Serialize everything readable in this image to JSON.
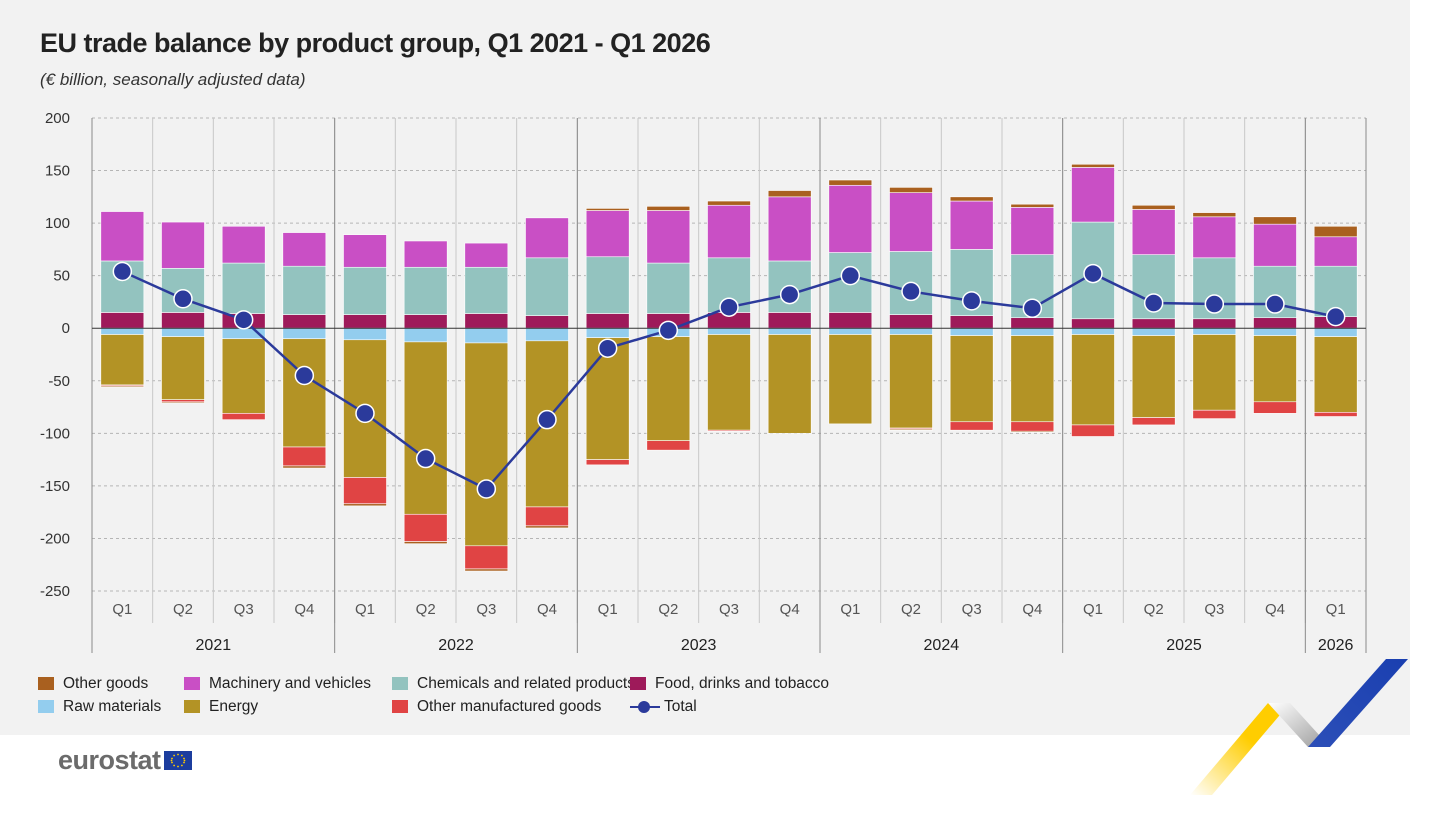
{
  "header": {
    "title": "EU trade balance by product group, Q1 2021 - Q1 2026",
    "subtitle": "(€ billion, seasonally adjusted data)"
  },
  "brand": {
    "name": "eurostat"
  },
  "colors": {
    "other_goods": "#a9601f",
    "machinery": "#c94fc5",
    "chemicals": "#93c3bf",
    "food": "#9e1a5a",
    "raw": "#93cdee",
    "energy": "#b39325",
    "other_manufactured": "#e04444",
    "total": "#2b3a9b"
  },
  "legend": {
    "items": [
      {
        "key": "other_goods",
        "label": "Other goods"
      },
      {
        "key": "machinery",
        "label": "Machinery and vehicles"
      },
      {
        "key": "chemicals",
        "label": "Chemicals and related products"
      },
      {
        "key": "food",
        "label": "Food, drinks and tobacco"
      },
      {
        "key": "raw",
        "label": "Raw materials"
      },
      {
        "key": "energy",
        "label": "Energy"
      },
      {
        "key": "other_manufactured",
        "label": "Other manufactured goods"
      },
      {
        "key": "total",
        "label": "Total"
      }
    ]
  },
  "chart_data": {
    "type": "bar",
    "stacked": true,
    "ylim": [
      -250,
      200
    ],
    "yticks": [
      200,
      150,
      100,
      50,
      0,
      -50,
      -100,
      -150,
      -200,
      -250
    ],
    "grid": true,
    "legend_position": "bottom",
    "categories": [
      "Q1",
      "Q2",
      "Q3",
      "Q4",
      "Q1",
      "Q2",
      "Q3",
      "Q4",
      "Q1",
      "Q2",
      "Q3",
      "Q4",
      "Q1",
      "Q2",
      "Q3",
      "Q4",
      "Q1",
      "Q2",
      "Q3",
      "Q4",
      "Q1"
    ],
    "years": [
      {
        "label": "2021",
        "count": 4
      },
      {
        "label": "2022",
        "count": 4
      },
      {
        "label": "2023",
        "count": 4
      },
      {
        "label": "2024",
        "count": 4
      },
      {
        "label": "2025",
        "count": 4
      },
      {
        "label": "2026",
        "count": 1
      }
    ],
    "series": [
      {
        "key": "food",
        "name": "Food, drinks and tobacco",
        "values": [
          15,
          15,
          14,
          13,
          13,
          13,
          14,
          12,
          14,
          14,
          15,
          15,
          15,
          13,
          12,
          10,
          9,
          9,
          9,
          10,
          11
        ]
      },
      {
        "key": "chemicals",
        "name": "Chemicals and related products",
        "values": [
          49,
          42,
          48,
          46,
          45,
          45,
          44,
          55,
          54,
          48,
          52,
          49,
          57,
          60,
          63,
          60,
          92,
          61,
          58,
          49,
          48
        ]
      },
      {
        "key": "machinery",
        "name": "Machinery and vehicles",
        "values": [
          47,
          44,
          35,
          32,
          31,
          25,
          23,
          38,
          44,
          50,
          50,
          61,
          64,
          56,
          46,
          45,
          52,
          43,
          39,
          40,
          28
        ]
      },
      {
        "key": "other_goods",
        "name": "Other goods",
        "values": [
          0,
          0,
          0,
          0,
          0,
          0,
          0,
          0,
          2,
          4,
          4,
          6,
          5,
          5,
          4,
          3,
          3,
          4,
          4,
          7,
          10
        ]
      },
      {
        "key": "raw",
        "name": "Raw materials",
        "values": [
          -6,
          -8,
          -10,
          -10,
          -11,
          -13,
          -14,
          -12,
          -9,
          -8,
          -6,
          -6,
          -6,
          -6,
          -7,
          -7,
          -6,
          -7,
          -6,
          -7,
          -8
        ]
      },
      {
        "key": "energy",
        "name": "Energy",
        "values": [
          -48,
          -60,
          -71,
          -103,
          -131,
          -164,
          -193,
          -158,
          -116,
          -99,
          -91,
          -94,
          -85,
          -89,
          -82,
          -82,
          -86,
          -78,
          -72,
          -63,
          -72
        ]
      },
      {
        "key": "other_manufactured",
        "name": "Other manufactured goods",
        "values": [
          -1,
          -2,
          -6,
          -18,
          -25,
          -26,
          -22,
          -18,
          -5,
          -9,
          -1,
          0,
          0,
          -1,
          -8,
          -9,
          -11,
          -7,
          -8,
          -11,
          -4
        ]
      },
      {
        "key": "other_goods_neg",
        "name": "Other goods",
        "values": [
          -1,
          -1,
          0,
          -2,
          -2,
          -2,
          -2,
          -2,
          0,
          0,
          0,
          0,
          0,
          -1,
          0,
          -1,
          0,
          0,
          0,
          0,
          0
        ]
      }
    ],
    "total": {
      "name": "Total",
      "values": [
        54,
        28,
        8,
        -45,
        -81,
        -124,
        -153,
        -87,
        -19,
        -2,
        20,
        32,
        50,
        35,
        26,
        19,
        52,
        24,
        23,
        23,
        11
      ]
    }
  }
}
